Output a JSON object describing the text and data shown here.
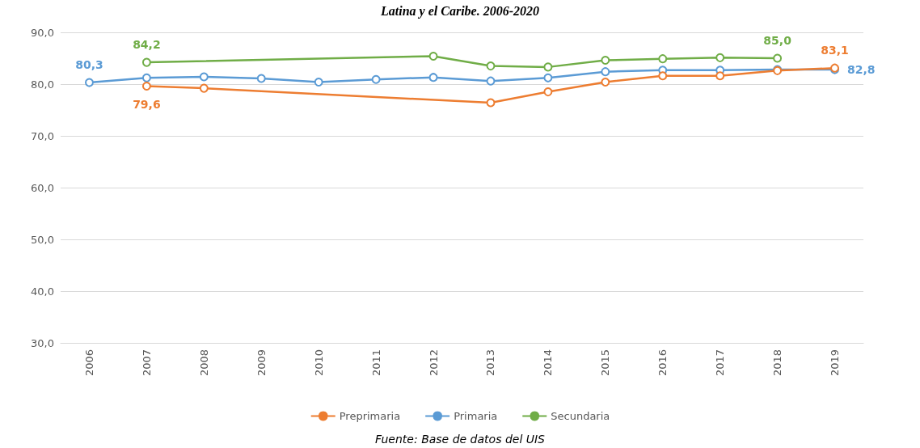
{
  "chart_data": {
    "type": "line",
    "title": "Latina y el Caribe. 2006-2020",
    "categories": [
      "2006",
      "2007",
      "2008",
      "2009",
      "2010",
      "2011",
      "2012",
      "2013",
      "2014",
      "2015",
      "2016",
      "2017",
      "2018",
      "2019"
    ],
    "series": [
      {
        "name": "Preprimaria",
        "color": "#ed7d31",
        "values": [
          null,
          79.6,
          79.2,
          null,
          null,
          null,
          null,
          76.4,
          78.5,
          80.4,
          81.6,
          81.6,
          82.6,
          83.1
        ],
        "value_labels": [
          null,
          "79,6",
          null,
          null,
          null,
          null,
          null,
          null,
          null,
          null,
          null,
          null,
          null,
          "83,1"
        ]
      },
      {
        "name": "Primaria",
        "color": "#5b9bd5",
        "values": [
          80.3,
          81.2,
          81.4,
          81.1,
          80.4,
          80.9,
          81.3,
          80.6,
          81.2,
          82.4,
          82.7,
          82.7,
          82.8,
          82.8
        ],
        "value_labels": [
          "80,3",
          null,
          null,
          null,
          null,
          null,
          null,
          null,
          null,
          null,
          null,
          null,
          null,
          "82,8"
        ]
      },
      {
        "name": "Secundaria",
        "color": "#70ad47",
        "values": [
          null,
          84.2,
          null,
          null,
          null,
          null,
          85.4,
          83.5,
          83.3,
          84.6,
          84.9,
          85.1,
          85.0,
          null
        ],
        "value_labels": [
          null,
          "84,2",
          null,
          null,
          null,
          null,
          null,
          null,
          null,
          null,
          null,
          null,
          "85,0",
          null
        ]
      }
    ],
    "ylim": [
      30,
      90
    ],
    "yticks": [
      {
        "value": 30,
        "label": "30,0"
      },
      {
        "value": 40,
        "label": "40,0"
      },
      {
        "value": 50,
        "label": "50,0"
      },
      {
        "value": 60,
        "label": "60,0"
      },
      {
        "value": 70,
        "label": "70,0"
      },
      {
        "value": 80,
        "label": "80,0"
      },
      {
        "value": 90,
        "label": "90,0"
      }
    ],
    "grid": "y",
    "legend": "bottom",
    "marker": "circle",
    "line_style": "solid",
    "annotations": [
      "Fuente: Base de datos del UIS"
    ]
  }
}
